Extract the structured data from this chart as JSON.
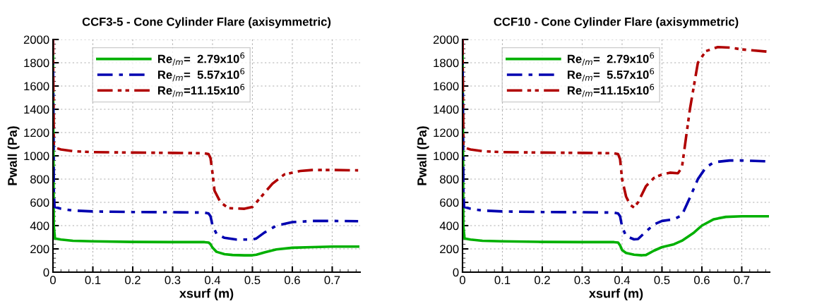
{
  "chart_data": [
    {
      "type": "line",
      "title": "CCF3-5 - Cone Cylinder Flare (axisymmetric)",
      "xlabel": "xsurf (m)",
      "ylabel": "Pwall (Pa)",
      "xlim": [
        0,
        0.77
      ],
      "ylim": [
        0,
        2000
      ],
      "xticks": [
        0,
        0.1,
        0.2,
        0.3,
        0.4,
        0.5,
        0.6,
        0.7
      ],
      "yticks": [
        0,
        200,
        400,
        600,
        800,
        1000,
        1200,
        1400,
        1600,
        1800,
        2000
      ],
      "grid": true,
      "legend": "top left",
      "marker": "none",
      "series": [
        {
          "name": "Re$_{/m}$=  2.79x10$^{6}$",
          "color": "#00b000",
          "line_style": "solid",
          "x": [
            0,
            0.002,
            0.005,
            0.02,
            0.05,
            0.1,
            0.2,
            0.3,
            0.38,
            0.39,
            0.395,
            0.4,
            0.41,
            0.43,
            0.45,
            0.48,
            0.5,
            0.51,
            0.53,
            0.56,
            0.6,
            0.65,
            0.7,
            0.765
          ],
          "values": [
            2000,
            400,
            290,
            280,
            270,
            265,
            260,
            258,
            258,
            255,
            240,
            210,
            175,
            155,
            148,
            145,
            145,
            150,
            170,
            195,
            210,
            215,
            220,
            220
          ]
        },
        {
          "name": "Re$_{/m}$=  5.57x10$^{6}$",
          "color": "#0000b0",
          "line_style": "dashdot",
          "x": [
            0,
            0.002,
            0.004,
            0.02,
            0.05,
            0.1,
            0.2,
            0.3,
            0.38,
            0.39,
            0.395,
            0.4,
            0.41,
            0.43,
            0.46,
            0.5,
            0.51,
            0.53,
            0.56,
            0.6,
            0.65,
            0.7,
            0.765
          ],
          "values": [
            2000,
            700,
            560,
            545,
            530,
            522,
            517,
            515,
            512,
            505,
            480,
            400,
            330,
            295,
            280,
            280,
            290,
            340,
            400,
            430,
            440,
            440,
            438
          ]
        },
        {
          "name": "Re$_{/m}$=11.15x10$^{6}$",
          "color": "#b00000",
          "line_style": "dashdotdot",
          "x": [
            0,
            0.002,
            0.005,
            0.02,
            0.05,
            0.1,
            0.2,
            0.3,
            0.38,
            0.39,
            0.395,
            0.4,
            0.405,
            0.42,
            0.44,
            0.48,
            0.5,
            0.52,
            0.55,
            0.58,
            0.62,
            0.65,
            0.7,
            0.765
          ],
          "values": [
            2000,
            1100,
            1070,
            1055,
            1040,
            1032,
            1028,
            1025,
            1022,
            1015,
            980,
            850,
            700,
            600,
            550,
            545,
            560,
            640,
            760,
            840,
            870,
            878,
            878,
            875
          ]
        }
      ]
    },
    {
      "type": "line",
      "title": "CCF10 - Cone Cylinder Flare (axisymmetric)",
      "xlabel": "xsurf (m)",
      "ylabel": "Pwall (Pa)",
      "xlim": [
        0,
        0.77
      ],
      "ylim": [
        0,
        2000
      ],
      "xticks": [
        0,
        0.1,
        0.2,
        0.3,
        0.4,
        0.5,
        0.6,
        0.7
      ],
      "yticks": [
        0,
        200,
        400,
        600,
        800,
        1000,
        1200,
        1400,
        1600,
        1800,
        2000
      ],
      "grid": true,
      "legend": "top left",
      "marker": "none",
      "series": [
        {
          "name": "Re$_{/m}$=  2.79x10$^{6}$",
          "color": "#00b000",
          "line_style": "solid",
          "x": [
            0,
            0.002,
            0.005,
            0.02,
            0.05,
            0.1,
            0.2,
            0.3,
            0.38,
            0.39,
            0.395,
            0.4,
            0.41,
            0.43,
            0.45,
            0.46,
            0.48,
            0.5,
            0.53,
            0.55,
            0.58,
            0.6,
            0.63,
            0.66,
            0.7,
            0.765
          ],
          "values": [
            2000,
            400,
            290,
            280,
            270,
            265,
            260,
            258,
            258,
            255,
            230,
            190,
            165,
            150,
            145,
            148,
            185,
            215,
            240,
            270,
            340,
            400,
            455,
            475,
            480,
            480
          ]
        },
        {
          "name": "Re$_{/m}$=  5.57x10$^{6}$",
          "color": "#0000b0",
          "line_style": "dashdot",
          "x": [
            0,
            0.002,
            0.004,
            0.02,
            0.05,
            0.1,
            0.2,
            0.3,
            0.38,
            0.39,
            0.395,
            0.4,
            0.41,
            0.43,
            0.44,
            0.46,
            0.48,
            0.5,
            0.53,
            0.55,
            0.57,
            0.59,
            0.61,
            0.63,
            0.67,
            0.7,
            0.765
          ],
          "values": [
            2000,
            700,
            560,
            545,
            530,
            522,
            517,
            515,
            512,
            505,
            480,
            390,
            310,
            282,
            285,
            350,
            410,
            440,
            455,
            490,
            640,
            800,
            900,
            945,
            960,
            960,
            952
          ]
        },
        {
          "name": "Re$_{/m}$=11.15x10$^{6}$",
          "color": "#b00000",
          "line_style": "dashdotdot",
          "x": [
            0,
            0.002,
            0.005,
            0.02,
            0.05,
            0.1,
            0.2,
            0.3,
            0.38,
            0.39,
            0.395,
            0.4,
            0.41,
            0.42,
            0.43,
            0.44,
            0.46,
            0.48,
            0.5,
            0.52,
            0.54,
            0.55,
            0.56,
            0.57,
            0.58,
            0.59,
            0.61,
            0.64,
            0.67,
            0.7,
            0.765
          ],
          "values": [
            2000,
            1100,
            1070,
            1055,
            1040,
            1032,
            1028,
            1025,
            1022,
            1015,
            970,
            800,
            650,
            580,
            555,
            600,
            740,
            810,
            840,
            855,
            850,
            900,
            1150,
            1400,
            1600,
            1800,
            1900,
            1935,
            1930,
            1915,
            1895
          ]
        }
      ]
    }
  ]
}
